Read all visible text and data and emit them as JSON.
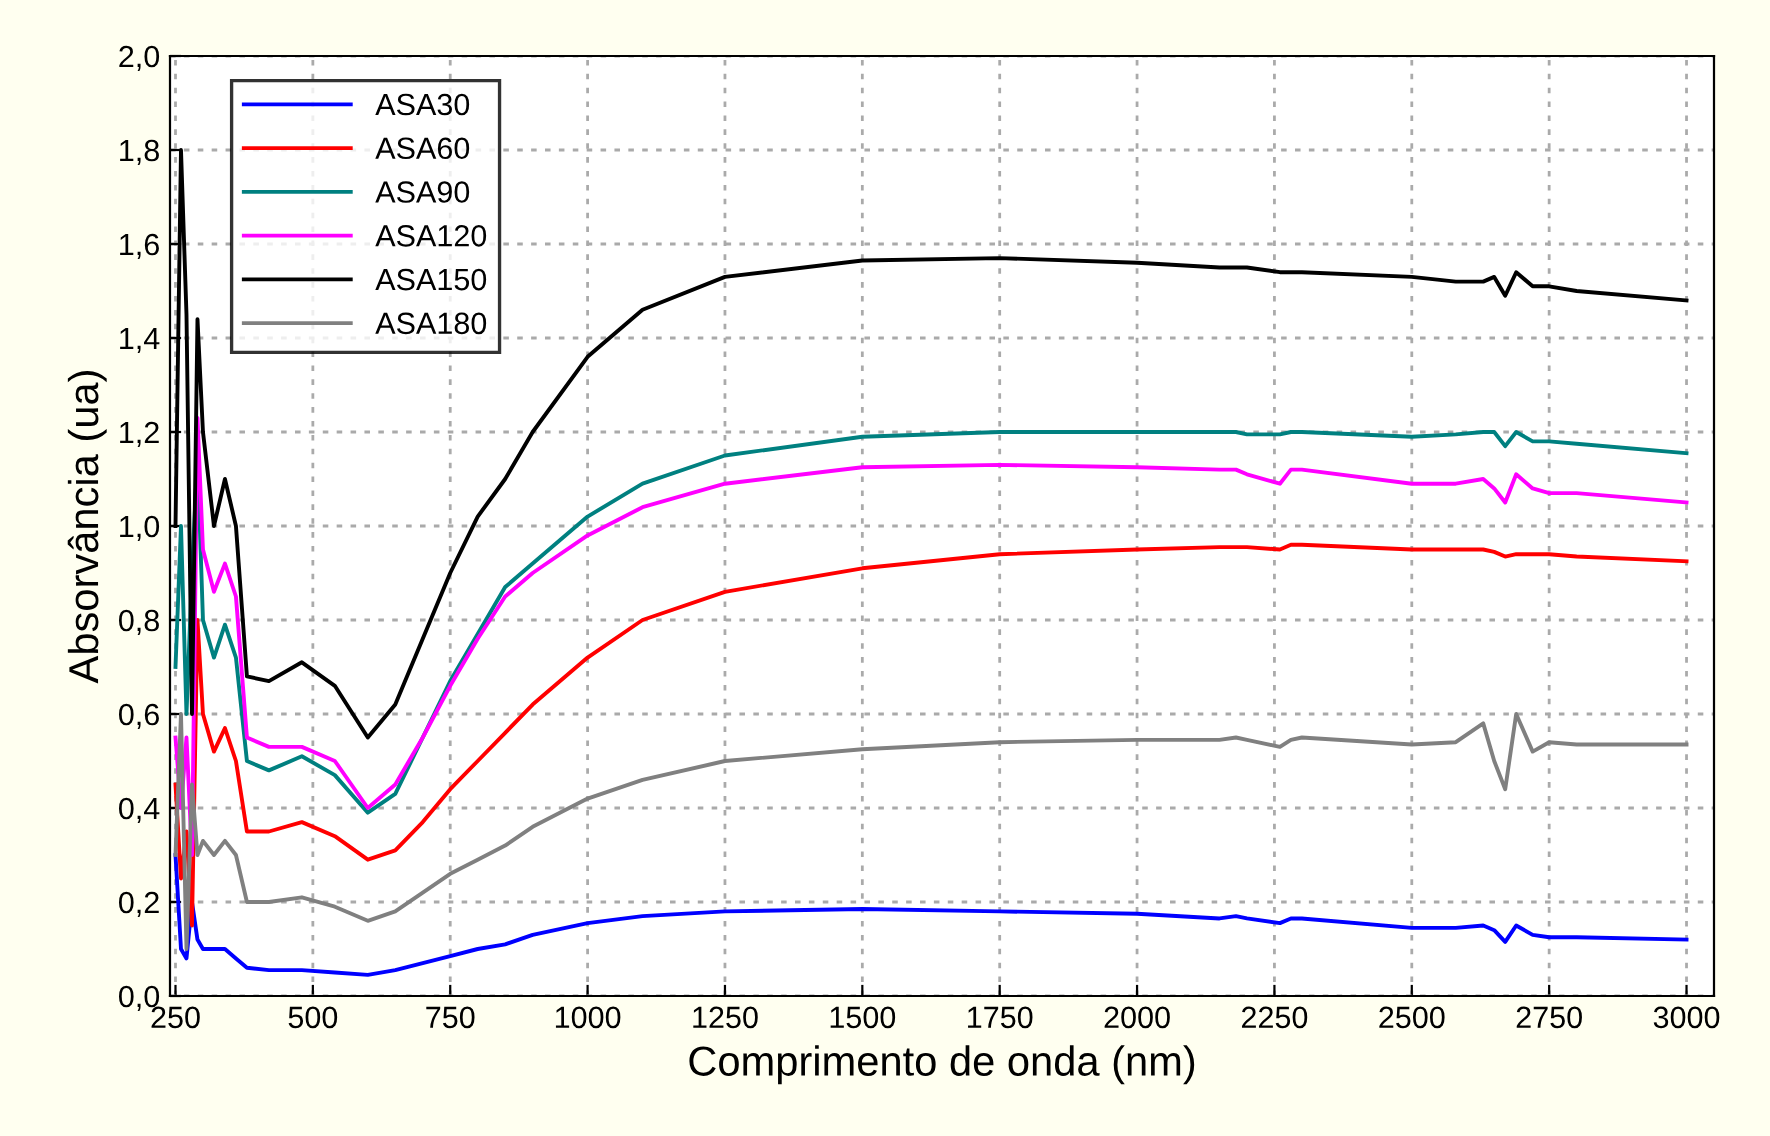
{
  "chart_data": {
    "type": "line",
    "xlabel": "Comprimento de onda (nm)",
    "ylabel": "Absorvância (ua)",
    "x": [
      250,
      260,
      270,
      280,
      290,
      300,
      320,
      340,
      360,
      380,
      420,
      480,
      540,
      600,
      650,
      700,
      750,
      800,
      850,
      900,
      1000,
      1100,
      1250,
      1500,
      1750,
      2000,
      2150,
      2180,
      2200,
      2260,
      2280,
      2300,
      2500,
      2580,
      2630,
      2650,
      2670,
      2690,
      2720,
      2750,
      2800,
      3000
    ],
    "series": [
      {
        "name": "ASA30",
        "color": "#0000ff",
        "values": [
          0.3,
          0.1,
          0.08,
          0.2,
          0.12,
          0.1,
          0.1,
          0.1,
          0.08,
          0.06,
          0.055,
          0.055,
          0.05,
          0.045,
          0.055,
          0.07,
          0.085,
          0.1,
          0.11,
          0.13,
          0.155,
          0.17,
          0.18,
          0.185,
          0.18,
          0.175,
          0.165,
          0.17,
          0.165,
          0.155,
          0.165,
          0.165,
          0.145,
          0.145,
          0.15,
          0.14,
          0.115,
          0.15,
          0.13,
          0.125,
          0.125,
          0.12
        ]
      },
      {
        "name": "ASA60",
        "color": "#ff0000",
        "values": [
          0.45,
          0.25,
          0.35,
          0.15,
          0.8,
          0.6,
          0.52,
          0.57,
          0.5,
          0.35,
          0.35,
          0.37,
          0.34,
          0.29,
          0.31,
          0.37,
          0.44,
          0.5,
          0.56,
          0.62,
          0.72,
          0.8,
          0.86,
          0.91,
          0.94,
          0.95,
          0.955,
          0.955,
          0.955,
          0.95,
          0.96,
          0.96,
          0.95,
          0.95,
          0.95,
          0.945,
          0.935,
          0.94,
          0.94,
          0.94,
          0.935,
          0.925
        ]
      },
      {
        "name": "ASA90",
        "color": "#008080",
        "values": [
          0.7,
          1.0,
          0.6,
          0.9,
          1.15,
          0.8,
          0.72,
          0.79,
          0.72,
          0.5,
          0.48,
          0.51,
          0.47,
          0.39,
          0.43,
          0.55,
          0.67,
          0.77,
          0.87,
          0.92,
          1.02,
          1.09,
          1.15,
          1.19,
          1.2,
          1.2,
          1.2,
          1.2,
          1.195,
          1.195,
          1.2,
          1.2,
          1.19,
          1.195,
          1.2,
          1.2,
          1.17,
          1.2,
          1.18,
          1.18,
          1.175,
          1.155
        ]
      },
      {
        "name": "ASA120",
        "color": "#ff00ff",
        "values": [
          0.55,
          0.4,
          0.55,
          0.3,
          1.23,
          0.95,
          0.86,
          0.92,
          0.85,
          0.55,
          0.53,
          0.53,
          0.5,
          0.4,
          0.45,
          0.55,
          0.66,
          0.76,
          0.85,
          0.9,
          0.98,
          1.04,
          1.09,
          1.125,
          1.13,
          1.125,
          1.12,
          1.12,
          1.11,
          1.09,
          1.12,
          1.12,
          1.09,
          1.09,
          1.1,
          1.08,
          1.05,
          1.11,
          1.08,
          1.07,
          1.07,
          1.05
        ]
      },
      {
        "name": "ASA150",
        "color": "#000000",
        "values": [
          1.0,
          1.8,
          1.45,
          0.6,
          1.44,
          1.2,
          1.0,
          1.1,
          1.0,
          0.68,
          0.67,
          0.71,
          0.66,
          0.55,
          0.62,
          0.76,
          0.9,
          1.02,
          1.1,
          1.2,
          1.36,
          1.46,
          1.53,
          1.565,
          1.57,
          1.56,
          1.55,
          1.55,
          1.55,
          1.54,
          1.54,
          1.54,
          1.53,
          1.52,
          1.52,
          1.53,
          1.49,
          1.54,
          1.51,
          1.51,
          1.5,
          1.48
        ]
      },
      {
        "name": "ASA180",
        "color": "#808080",
        "values": [
          0.3,
          0.6,
          0.1,
          0.45,
          0.3,
          0.33,
          0.3,
          0.33,
          0.3,
          0.2,
          0.2,
          0.21,
          0.19,
          0.16,
          0.18,
          0.22,
          0.26,
          0.29,
          0.32,
          0.36,
          0.42,
          0.46,
          0.5,
          0.525,
          0.54,
          0.545,
          0.545,
          0.55,
          0.545,
          0.53,
          0.545,
          0.55,
          0.535,
          0.54,
          0.58,
          0.5,
          0.44,
          0.6,
          0.52,
          0.54,
          0.535,
          0.535
        ]
      }
    ],
    "xlim": [
      240,
      3050
    ],
    "ylim": [
      0,
      2.0
    ],
    "xticks": [
      250,
      500,
      750,
      1000,
      1250,
      1500,
      1750,
      2000,
      2250,
      2500,
      2750,
      3000
    ],
    "yticks": [
      {
        "value": 0,
        "label": "0,0"
      },
      {
        "value": 0.2,
        "label": "0,2"
      },
      {
        "value": 0.4,
        "label": "0,4"
      },
      {
        "value": 0.6,
        "label": "0,6"
      },
      {
        "value": 0.8,
        "label": "0,8"
      },
      {
        "value": 1.0,
        "label": "1,0"
      },
      {
        "value": 1.2,
        "label": "1,2"
      },
      {
        "value": 1.4,
        "label": "1,4"
      },
      {
        "value": 1.6,
        "label": "1,6"
      },
      {
        "value": 1.8,
        "label": "1,8"
      },
      {
        "value": 2.0,
        "label": "2,0"
      }
    ],
    "grid": true,
    "legend": "top left",
    "line_style": "solid",
    "marker": "none"
  }
}
